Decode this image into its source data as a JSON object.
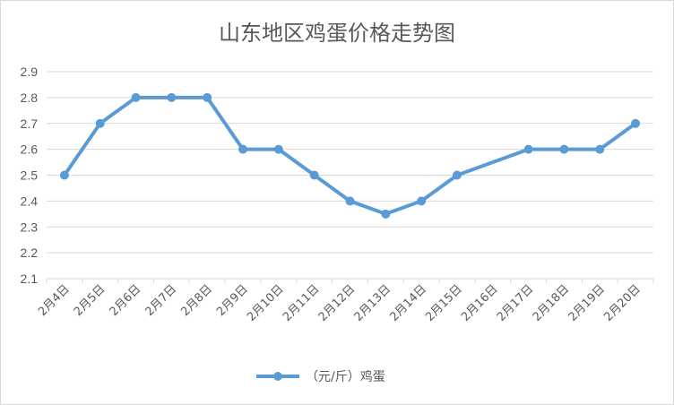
{
  "chart_data": {
    "type": "line",
    "title": "山东地区鸡蛋价格走势图",
    "xlabel": "",
    "ylabel": "",
    "categories": [
      "2月4日",
      "2月5日",
      "2月6日",
      "2月7日",
      "2月8日",
      "2月9日",
      "2月10日",
      "2月11日",
      "2月12日",
      "2月13日",
      "2月14日",
      "2月15日",
      "2月16日",
      "2月17日",
      "2月18日",
      "2月19日",
      "2月20日"
    ],
    "series": [
      {
        "name": "（元/斤）鸡蛋",
        "values": [
          2.5,
          2.7,
          2.8,
          2.8,
          2.8,
          2.6,
          2.6,
          2.5,
          2.4,
          2.35,
          2.4,
          2.5,
          null,
          2.6,
          2.6,
          2.6,
          2.7
        ]
      }
    ],
    "ylim": [
      2.1,
      2.9
    ],
    "yticks": [
      2.1,
      2.2,
      2.3,
      2.4,
      2.5,
      2.6,
      2.7,
      2.8,
      2.9
    ],
    "grid": true,
    "legend_position": "bottom",
    "colors": {
      "series": "#5b9bd5",
      "grid": "#d9d9d9",
      "text": "#595959"
    }
  }
}
